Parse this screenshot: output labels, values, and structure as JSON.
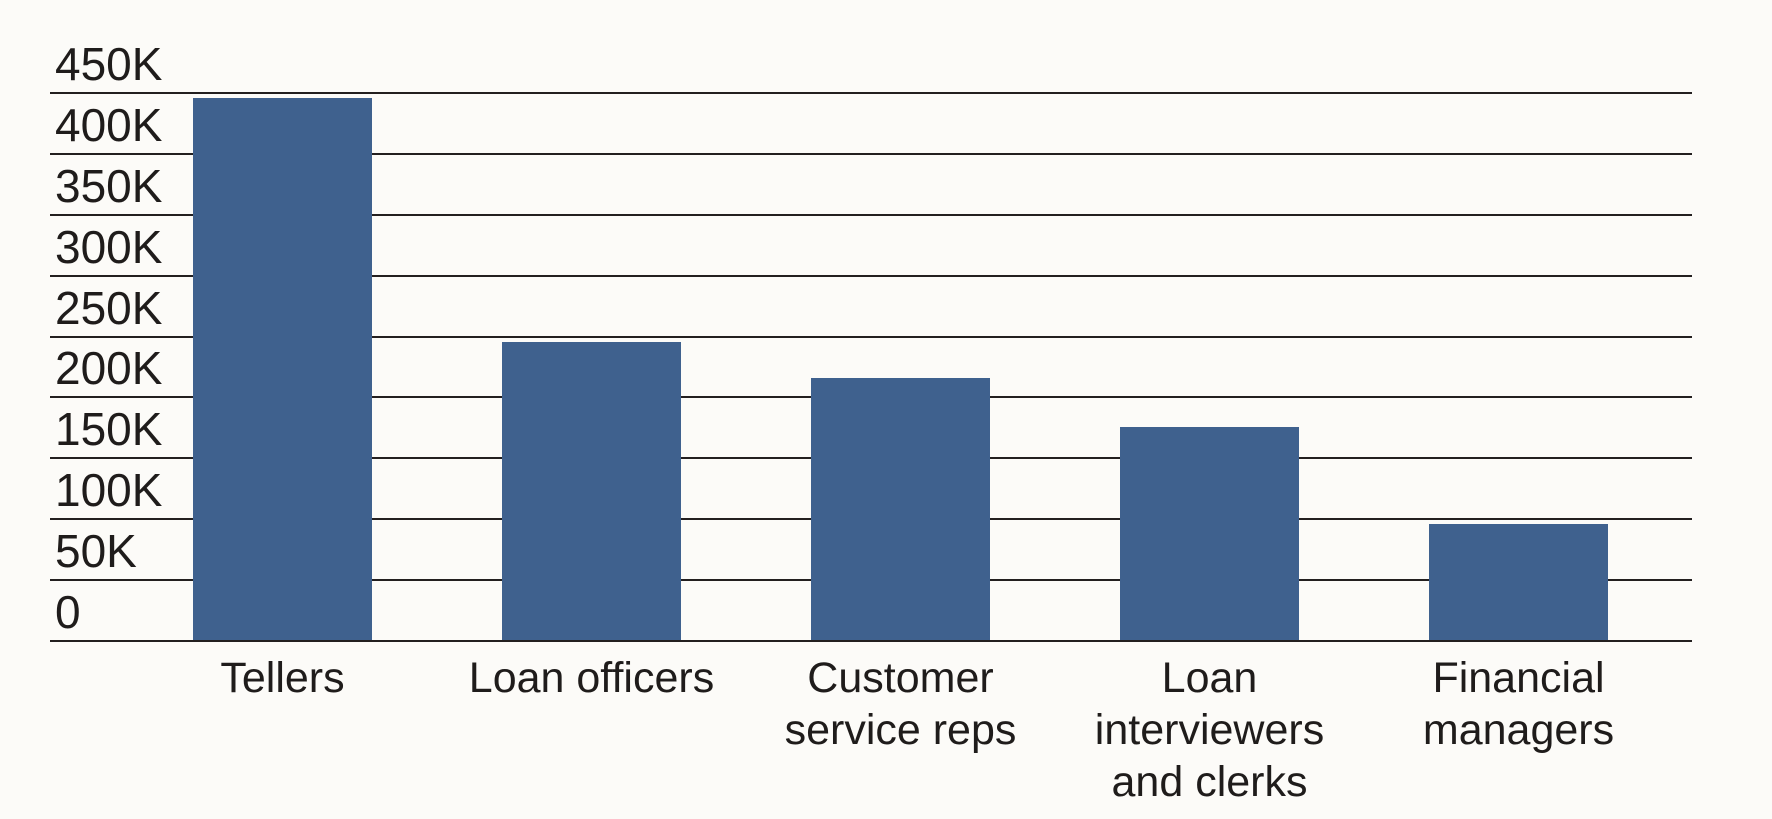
{
  "chart_data": {
    "type": "bar",
    "title": "",
    "xlabel": "",
    "ylabel": "",
    "categories": [
      "Tellers",
      "Loan officers",
      "Customer service reps",
      "Loan interviewers and clerks",
      "Financial managers"
    ],
    "category_label_lines": [
      [
        "Tellers"
      ],
      [
        "Loan officers"
      ],
      [
        "Customer",
        "service reps"
      ],
      [
        "Loan",
        "interviewers",
        "and clerks"
      ],
      [
        "Financial",
        "managers"
      ]
    ],
    "values": [
      445000,
      245000,
      215000,
      175000,
      95000
    ],
    "ylim": [
      0,
      450000
    ],
    "ytick_step": 50000,
    "ytick_labels": [
      "450K",
      "400K",
      "350K",
      "300K",
      "250K",
      "200K",
      "150K",
      "100K",
      "50K",
      "0"
    ],
    "grid": "horizontal gridlines at every 50K including baseline, drawn behind bars",
    "legend": "none",
    "colors": {
      "bar": "#3f618e",
      "grid": "#231f1f",
      "text": "#1f1c1b",
      "background": "#fcfbf8"
    }
  }
}
